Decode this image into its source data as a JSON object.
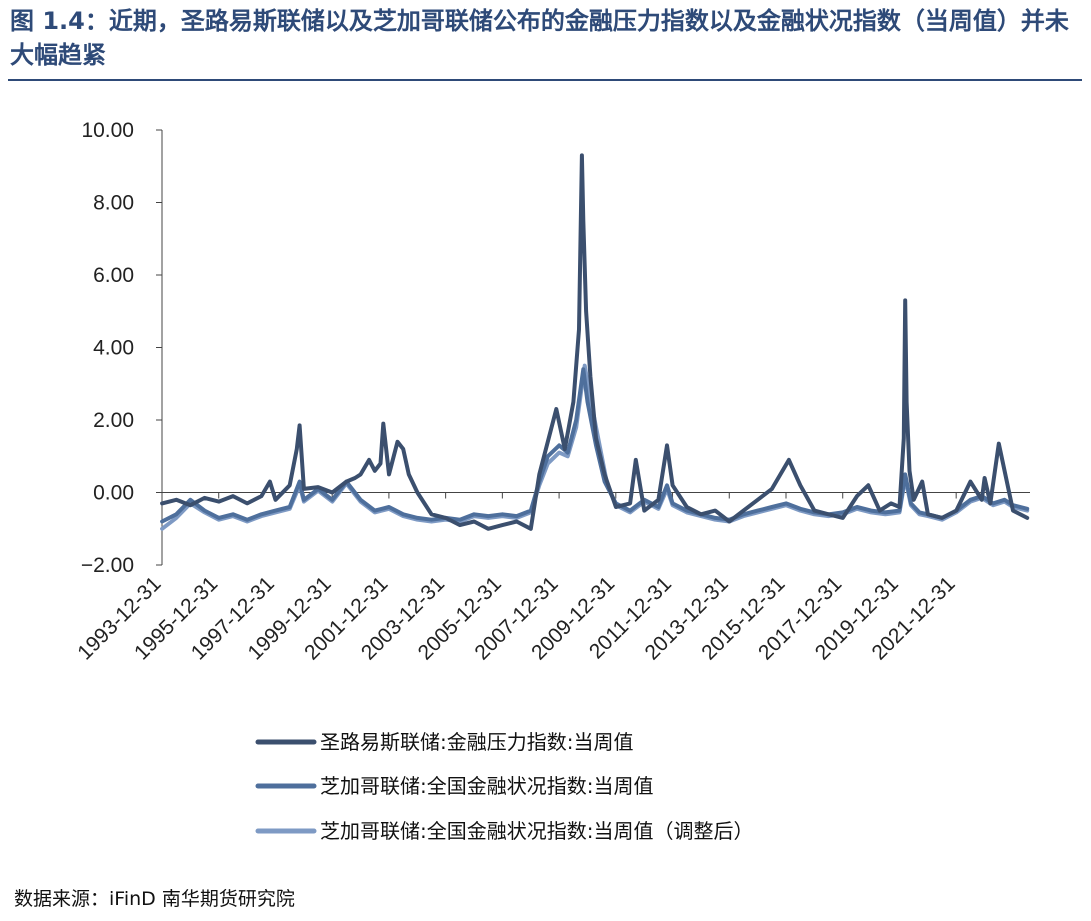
{
  "header": {
    "title": "图 1.4：近期，圣路易斯联储以及芝加哥联储公布的金融压力指数以及金融状况指数（当周值）并未大幅趋紧"
  },
  "footer": {
    "source": "数据来源：iFinD 南华期货研究院"
  },
  "chart_data": {
    "type": "line",
    "title": "",
    "xlabel": "",
    "ylabel": "",
    "ylim": [
      -2,
      10
    ],
    "y_ticks": [
      "10.00",
      "8.00",
      "6.00",
      "4.00",
      "2.00",
      "0.00",
      "−2.00"
    ],
    "x_range": [
      1993.997,
      2024.6
    ],
    "x_ticks": [
      "1993-12-31",
      "1995-12-31",
      "1997-12-31",
      "1999-12-31",
      "2001-12-31",
      "2003-12-31",
      "2005-12-31",
      "2007-12-31",
      "2009-12-31",
      "2011-12-31",
      "2013-12-31",
      "2015-12-31",
      "2017-12-31",
      "2019-12-31",
      "2021-12-31"
    ],
    "grid": false,
    "legend_position": "bottom",
    "series": [
      {
        "name": "圣路易斯联储:金融压力指数:当周值",
        "color": "#3b4f6e",
        "x": [
          1994.0,
          1994.5,
          1995.0,
          1995.5,
          1996.0,
          1996.5,
          1997.0,
          1997.5,
          1997.8,
          1998.0,
          1998.5,
          1998.75,
          1998.85,
          1999.0,
          1999.5,
          2000.0,
          2000.5,
          2000.8,
          2001.0,
          2001.3,
          2001.5,
          2001.7,
          2001.8,
          2002.0,
          2002.3,
          2002.5,
          2002.7,
          2003.0,
          2003.5,
          2004.0,
          2004.5,
          2005.0,
          2005.5,
          2006.0,
          2006.5,
          2007.0,
          2007.3,
          2007.6,
          2007.9,
          2008.2,
          2008.5,
          2008.7,
          2008.8,
          2008.85,
          2008.95,
          2009.1,
          2009.3,
          2009.6,
          2010.0,
          2010.5,
          2010.7,
          2011.0,
          2011.5,
          2011.8,
          2012.0,
          2012.5,
          2013.0,
          2013.5,
          2014.0,
          2014.5,
          2015.0,
          2015.5,
          2015.8,
          2016.1,
          2016.5,
          2017.0,
          2017.5,
          2018.0,
          2018.5,
          2018.9,
          2019.3,
          2019.7,
          2020.0,
          2020.15,
          2020.2,
          2020.25,
          2020.35,
          2020.5,
          2020.8,
          2021.0,
          2021.5,
          2022.0,
          2022.5,
          2022.9,
          2023.0,
          2023.2,
          2023.5,
          2024.0,
          2024.5
        ],
        "values": [
          -0.3,
          -0.2,
          -0.35,
          -0.15,
          -0.25,
          -0.1,
          -0.3,
          -0.1,
          0.3,
          -0.2,
          0.2,
          1.2,
          1.85,
          0.1,
          0.15,
          0.0,
          0.3,
          0.4,
          0.5,
          0.9,
          0.6,
          0.8,
          1.9,
          0.5,
          1.4,
          1.2,
          0.5,
          0.0,
          -0.6,
          -0.7,
          -0.9,
          -0.8,
          -1.0,
          -0.9,
          -0.8,
          -1.0,
          0.5,
          1.4,
          2.3,
          1.2,
          2.5,
          4.5,
          9.3,
          7.5,
          5.0,
          3.2,
          1.5,
          0.5,
          -0.4,
          -0.3,
          0.9,
          -0.5,
          -0.2,
          1.3,
          0.2,
          -0.4,
          -0.6,
          -0.5,
          -0.8,
          -0.5,
          -0.2,
          0.1,
          0.5,
          0.9,
          0.2,
          -0.5,
          -0.6,
          -0.7,
          -0.1,
          0.2,
          -0.5,
          -0.3,
          -0.4,
          1.5,
          5.3,
          2.5,
          0.6,
          -0.2,
          0.3,
          -0.6,
          -0.7,
          -0.5,
          0.3,
          -0.2,
          0.4,
          -0.3,
          1.35,
          -0.5,
          -0.7
        ]
      },
      {
        "name": "芝加哥联储:全国金融状况指数:当周值",
        "color": "#4e6f9c",
        "x": [
          1994.0,
          1994.5,
          1995.0,
          1995.5,
          1996.0,
          1996.5,
          1997.0,
          1997.5,
          1998.0,
          1998.5,
          1998.85,
          1999.0,
          1999.5,
          2000.0,
          2000.5,
          2001.0,
          2001.5,
          2002.0,
          2002.5,
          2003.0,
          2003.5,
          2004.0,
          2004.5,
          2005.0,
          2005.5,
          2006.0,
          2006.5,
          2007.0,
          2007.3,
          2007.6,
          2008.0,
          2008.3,
          2008.6,
          2008.85,
          2009.0,
          2009.3,
          2009.6,
          2010.0,
          2010.5,
          2011.0,
          2011.5,
          2011.8,
          2012.0,
          2012.5,
          2013.0,
          2013.5,
          2014.0,
          2014.5,
          2015.0,
          2015.5,
          2016.0,
          2016.5,
          2017.0,
          2017.5,
          2018.0,
          2018.5,
          2019.0,
          2019.5,
          2020.0,
          2020.2,
          2020.4,
          2020.7,
          2021.0,
          2021.5,
          2022.0,
          2022.5,
          2022.9,
          2023.3,
          2023.7,
          2024.0,
          2024.5
        ],
        "values": [
          -0.8,
          -0.6,
          -0.2,
          -0.5,
          -0.7,
          -0.6,
          -0.75,
          -0.6,
          -0.5,
          -0.4,
          0.3,
          -0.2,
          0.1,
          -0.2,
          0.3,
          -0.2,
          -0.5,
          -0.4,
          -0.6,
          -0.7,
          -0.75,
          -0.7,
          -0.75,
          -0.6,
          -0.65,
          -0.6,
          -0.65,
          -0.5,
          0.3,
          1.0,
          1.3,
          1.1,
          2.0,
          3.4,
          2.5,
          1.3,
          0.3,
          -0.3,
          -0.5,
          -0.2,
          -0.4,
          0.2,
          -0.3,
          -0.5,
          -0.6,
          -0.7,
          -0.75,
          -0.6,
          -0.5,
          -0.4,
          -0.3,
          -0.45,
          -0.55,
          -0.6,
          -0.55,
          -0.4,
          -0.5,
          -0.55,
          -0.5,
          0.5,
          -0.3,
          -0.55,
          -0.6,
          -0.7,
          -0.5,
          -0.2,
          -0.1,
          -0.3,
          -0.2,
          -0.35,
          -0.45
        ]
      },
      {
        "name": "芝加哥联储:全国金融状况指数:当周值（调整后）",
        "color": "#7e9ac4",
        "x": [
          1994.0,
          1994.5,
          1995.0,
          1995.5,
          1996.0,
          1996.5,
          1997.0,
          1997.5,
          1998.0,
          1998.5,
          1998.85,
          1999.0,
          1999.5,
          2000.0,
          2000.5,
          2001.0,
          2001.5,
          2002.0,
          2002.5,
          2003.0,
          2003.5,
          2004.0,
          2004.5,
          2005.0,
          2005.5,
          2006.0,
          2006.5,
          2007.0,
          2007.3,
          2007.6,
          2008.0,
          2008.3,
          2008.6,
          2008.9,
          2009.1,
          2009.4,
          2009.7,
          2010.0,
          2010.5,
          2011.0,
          2011.5,
          2011.8,
          2012.0,
          2012.5,
          2013.0,
          2013.5,
          2014.0,
          2014.5,
          2015.0,
          2015.5,
          2016.0,
          2016.5,
          2017.0,
          2017.5,
          2018.0,
          2018.5,
          2019.0,
          2019.5,
          2020.0,
          2020.2,
          2020.4,
          2020.7,
          2021.0,
          2021.5,
          2022.0,
          2022.5,
          2022.9,
          2023.3,
          2023.7,
          2024.0,
          2024.5
        ],
        "values": [
          -1.0,
          -0.7,
          -0.3,
          -0.55,
          -0.75,
          -0.65,
          -0.8,
          -0.65,
          -0.55,
          -0.45,
          0.2,
          -0.25,
          0.05,
          -0.25,
          0.25,
          -0.25,
          -0.55,
          -0.45,
          -0.65,
          -0.75,
          -0.8,
          -0.75,
          -0.8,
          -0.65,
          -0.7,
          -0.65,
          -0.7,
          -0.55,
          0.2,
          0.8,
          1.1,
          1.0,
          1.8,
          3.5,
          2.6,
          1.4,
          0.2,
          -0.35,
          -0.55,
          -0.25,
          -0.45,
          0.1,
          -0.35,
          -0.55,
          -0.65,
          -0.75,
          -0.8,
          -0.65,
          -0.55,
          -0.45,
          -0.35,
          -0.5,
          -0.6,
          -0.65,
          -0.6,
          -0.45,
          -0.55,
          -0.6,
          -0.55,
          0.4,
          -0.35,
          -0.6,
          -0.65,
          -0.75,
          -0.55,
          -0.25,
          -0.15,
          -0.35,
          -0.25,
          -0.4,
          -0.5
        ]
      }
    ]
  }
}
